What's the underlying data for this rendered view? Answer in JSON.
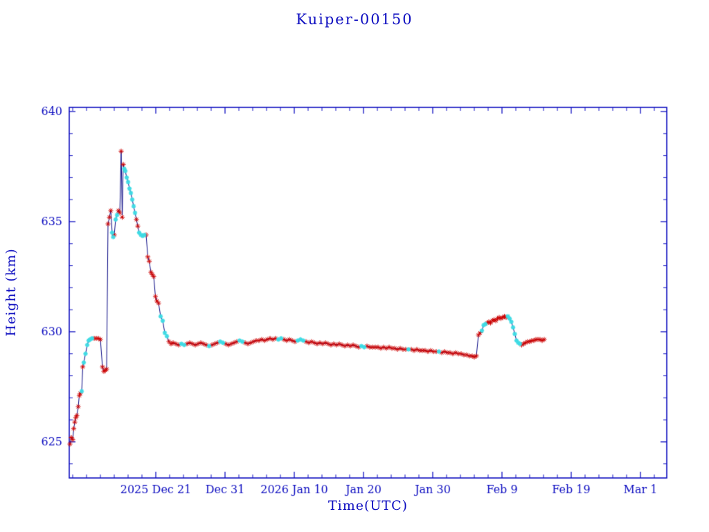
{
  "chart_data": {
    "type": "line",
    "title": "Kuiper-00150",
    "xlabel": "Time(UTC)",
    "ylabel": "Height (km)",
    "axis_color": "#0d0dc0",
    "line_color": "#000080",
    "marker_colors": {
      "r": "#cc0000",
      "c": "#3fdbe4"
    },
    "marker_styles": {
      "r": "red asterisk",
      "c": "cyan star"
    },
    "grid": false,
    "legend": "none",
    "x_unit": "days from left axis edge (major ticks every 10 days; day 12.5 = 2025 Dec 21)",
    "xlim": [
      0,
      86.3
    ],
    "ylim": [
      623.36,
      640.19
    ],
    "x_minor_step": 2,
    "y_minor_step": 1,
    "x_ticks": [
      {
        "pos": 12.5,
        "label": "2025 Dec 21"
      },
      {
        "pos": 22.5,
        "label": "Dec 31"
      },
      {
        "pos": 32.5,
        "label": "2026 Jan 10"
      },
      {
        "pos": 42.5,
        "label": "Jan 20"
      },
      {
        "pos": 52.5,
        "label": "Jan 30"
      },
      {
        "pos": 62.5,
        "label": "Feb 9"
      },
      {
        "pos": 72.5,
        "label": "Feb 19"
      },
      {
        "pos": 82.5,
        "label": "Mar 1"
      }
    ],
    "y_ticks": [
      {
        "pos": 625,
        "label": "625"
      },
      {
        "pos": 630,
        "label": "630"
      },
      {
        "pos": 635,
        "label": "635"
      },
      {
        "pos": 640,
        "label": "640"
      }
    ],
    "points": [
      [
        0.1,
        624.9,
        "r"
      ],
      [
        0.3,
        625.2,
        "r"
      ],
      [
        0.5,
        625.1,
        "r"
      ],
      [
        0.65,
        625.6,
        "r"
      ],
      [
        0.8,
        625.9,
        "r"
      ],
      [
        0.95,
        626.1,
        "r"
      ],
      [
        1.1,
        626.2,
        "r"
      ],
      [
        1.3,
        626.6,
        "r"
      ],
      [
        1.45,
        627.1,
        "r"
      ],
      [
        1.6,
        627.2,
        "r"
      ],
      [
        1.8,
        627.3,
        "c"
      ],
      [
        1.95,
        628.4,
        "r"
      ],
      [
        2.1,
        628.6,
        "c"
      ],
      [
        2.35,
        629.0,
        "c"
      ],
      [
        2.6,
        629.4,
        "c"
      ],
      [
        2.8,
        629.6,
        "c"
      ],
      [
        3.0,
        629.65,
        "c"
      ],
      [
        3.3,
        629.7,
        "c"
      ],
      [
        3.6,
        629.7,
        "r"
      ],
      [
        3.9,
        629.7,
        "r"
      ],
      [
        4.2,
        629.7,
        "r"
      ],
      [
        4.5,
        629.65,
        "r"
      ],
      [
        4.8,
        628.4,
        "r"
      ],
      [
        5.0,
        628.2,
        "r"
      ],
      [
        5.2,
        628.25,
        "r"
      ],
      [
        5.4,
        628.3,
        "r"
      ],
      [
        5.6,
        634.9,
        "r"
      ],
      [
        5.8,
        635.2,
        "r"
      ],
      [
        6.0,
        635.5,
        "r"
      ],
      [
        6.2,
        634.5,
        "c"
      ],
      [
        6.35,
        634.3,
        "c"
      ],
      [
        6.5,
        634.4,
        "r"
      ],
      [
        6.7,
        635.1,
        "c"
      ],
      [
        6.9,
        635.3,
        "c"
      ],
      [
        7.1,
        635.5,
        "r"
      ],
      [
        7.3,
        635.4,
        "r"
      ],
      [
        7.5,
        638.2,
        "r"
      ],
      [
        7.65,
        635.2,
        "r"
      ],
      [
        7.8,
        637.6,
        "r"
      ],
      [
        7.95,
        637.4,
        "c"
      ],
      [
        8.1,
        637.3,
        "c"
      ],
      [
        8.3,
        637.0,
        "c"
      ],
      [
        8.5,
        636.8,
        "c"
      ],
      [
        8.7,
        636.5,
        "c"
      ],
      [
        8.9,
        636.3,
        "c"
      ],
      [
        9.1,
        636.0,
        "c"
      ],
      [
        9.3,
        635.7,
        "c"
      ],
      [
        9.5,
        635.4,
        "c"
      ],
      [
        9.7,
        635.1,
        "r"
      ],
      [
        9.9,
        634.8,
        "r"
      ],
      [
        10.1,
        634.5,
        "c"
      ],
      [
        10.35,
        634.4,
        "c"
      ],
      [
        10.6,
        634.35,
        "c"
      ],
      [
        10.85,
        634.4,
        "c"
      ],
      [
        11.1,
        634.4,
        "r"
      ],
      [
        11.35,
        633.4,
        "r"
      ],
      [
        11.55,
        633.2,
        "r"
      ],
      [
        11.8,
        632.7,
        "r"
      ],
      [
        12.0,
        632.6,
        "r"
      ],
      [
        12.2,
        632.5,
        "r"
      ],
      [
        12.45,
        631.6,
        "r"
      ],
      [
        12.65,
        631.4,
        "r"
      ],
      [
        12.9,
        631.3,
        "r"
      ],
      [
        13.2,
        630.7,
        "c"
      ],
      [
        13.5,
        630.5,
        "c"
      ],
      [
        13.8,
        629.95,
        "c"
      ],
      [
        14.1,
        629.8,
        "c"
      ],
      [
        14.4,
        629.55,
        "r"
      ],
      [
        14.7,
        629.45,
        "r"
      ],
      [
        15.0,
        629.5,
        "r"
      ],
      [
        15.4,
        629.45,
        "r"
      ],
      [
        15.8,
        629.4,
        "r"
      ],
      [
        16.2,
        629.45,
        "c"
      ],
      [
        16.6,
        629.4,
        "c"
      ],
      [
        17.0,
        629.45,
        "r"
      ],
      [
        17.4,
        629.5,
        "r"
      ],
      [
        17.8,
        629.45,
        "r"
      ],
      [
        18.2,
        629.4,
        "r"
      ],
      [
        18.6,
        629.45,
        "r"
      ],
      [
        19.0,
        629.5,
        "r"
      ],
      [
        19.4,
        629.45,
        "r"
      ],
      [
        19.8,
        629.4,
        "r"
      ],
      [
        20.2,
        629.35,
        "c"
      ],
      [
        20.6,
        629.4,
        "r"
      ],
      [
        21.0,
        629.45,
        "r"
      ],
      [
        21.4,
        629.5,
        "r"
      ],
      [
        21.8,
        629.55,
        "c"
      ],
      [
        22.2,
        629.5,
        "c"
      ],
      [
        22.6,
        629.45,
        "r"
      ],
      [
        23.0,
        629.4,
        "r"
      ],
      [
        23.4,
        629.45,
        "r"
      ],
      [
        23.8,
        629.5,
        "r"
      ],
      [
        24.2,
        629.55,
        "r"
      ],
      [
        24.6,
        629.6,
        "c"
      ],
      [
        25.0,
        629.55,
        "c"
      ],
      [
        25.4,
        629.5,
        "r"
      ],
      [
        25.8,
        629.45,
        "r"
      ],
      [
        26.2,
        629.5,
        "r"
      ],
      [
        26.6,
        629.55,
        "r"
      ],
      [
        27.0,
        629.6,
        "r"
      ],
      [
        27.4,
        629.6,
        "r"
      ],
      [
        27.8,
        629.65,
        "r"
      ],
      [
        28.2,
        629.6,
        "r"
      ],
      [
        28.6,
        629.65,
        "r"
      ],
      [
        29.0,
        629.7,
        "r"
      ],
      [
        29.4,
        629.65,
        "r"
      ],
      [
        29.8,
        629.7,
        "r"
      ],
      [
        30.2,
        629.65,
        "c"
      ],
      [
        30.6,
        629.7,
        "c"
      ],
      [
        31.0,
        629.65,
        "r"
      ],
      [
        31.4,
        629.6,
        "r"
      ],
      [
        31.8,
        629.65,
        "r"
      ],
      [
        32.2,
        629.6,
        "r"
      ],
      [
        32.6,
        629.55,
        "r"
      ],
      [
        33.0,
        629.6,
        "c"
      ],
      [
        33.4,
        629.65,
        "c"
      ],
      [
        33.8,
        629.6,
        "c"
      ],
      [
        34.2,
        629.55,
        "r"
      ],
      [
        34.6,
        629.5,
        "r"
      ],
      [
        35.0,
        629.55,
        "r"
      ],
      [
        35.4,
        629.5,
        "r"
      ],
      [
        35.8,
        629.45,
        "r"
      ],
      [
        36.2,
        629.5,
        "r"
      ],
      [
        36.6,
        629.45,
        "r"
      ],
      [
        37.0,
        629.5,
        "r"
      ],
      [
        37.4,
        629.45,
        "r"
      ],
      [
        37.8,
        629.4,
        "r"
      ],
      [
        38.2,
        629.45,
        "r"
      ],
      [
        38.6,
        629.4,
        "r"
      ],
      [
        39.0,
        629.45,
        "r"
      ],
      [
        39.4,
        629.4,
        "r"
      ],
      [
        39.8,
        629.35,
        "r"
      ],
      [
        40.2,
        629.4,
        "r"
      ],
      [
        40.6,
        629.35,
        "r"
      ],
      [
        41.0,
        629.4,
        "r"
      ],
      [
        41.4,
        629.35,
        "r"
      ],
      [
        41.8,
        629.3,
        "r"
      ],
      [
        42.2,
        629.35,
        "c"
      ],
      [
        42.6,
        629.3,
        "c"
      ],
      [
        43.0,
        629.35,
        "r"
      ],
      [
        43.4,
        629.3,
        "r"
      ],
      [
        43.8,
        629.3,
        "r"
      ],
      [
        44.2,
        629.3,
        "r"
      ],
      [
        44.6,
        629.3,
        "r"
      ],
      [
        45.0,
        629.25,
        "r"
      ],
      [
        45.4,
        629.3,
        "r"
      ],
      [
        45.8,
        629.25,
        "r"
      ],
      [
        46.2,
        629.3,
        "r"
      ],
      [
        46.6,
        629.25,
        "r"
      ],
      [
        47.0,
        629.25,
        "r"
      ],
      [
        47.4,
        629.2,
        "r"
      ],
      [
        47.8,
        629.25,
        "r"
      ],
      [
        48.2,
        629.2,
        "r"
      ],
      [
        48.6,
        629.2,
        "r"
      ],
      [
        49.0,
        629.2,
        "c"
      ],
      [
        49.4,
        629.2,
        "r"
      ],
      [
        49.8,
        629.15,
        "r"
      ],
      [
        50.2,
        629.2,
        "r"
      ],
      [
        50.6,
        629.15,
        "r"
      ],
      [
        51.0,
        629.15,
        "r"
      ],
      [
        51.4,
        629.15,
        "r"
      ],
      [
        51.8,
        629.1,
        "r"
      ],
      [
        52.2,
        629.15,
        "r"
      ],
      [
        52.6,
        629.1,
        "r"
      ],
      [
        53.0,
        629.1,
        "r"
      ],
      [
        53.4,
        629.1,
        "c"
      ],
      [
        53.8,
        629.05,
        "r"
      ],
      [
        54.2,
        629.1,
        "r"
      ],
      [
        54.6,
        629.05,
        "r"
      ],
      [
        55.0,
        629.05,
        "r"
      ],
      [
        55.4,
        629.0,
        "r"
      ],
      [
        55.8,
        629.05,
        "r"
      ],
      [
        56.2,
        629.0,
        "r"
      ],
      [
        56.6,
        629.0,
        "r"
      ],
      [
        57.0,
        628.95,
        "r"
      ],
      [
        57.4,
        628.95,
        "r"
      ],
      [
        57.8,
        628.9,
        "r"
      ],
      [
        58.2,
        628.9,
        "r"
      ],
      [
        58.5,
        628.85,
        "r"
      ],
      [
        58.8,
        628.9,
        "r"
      ],
      [
        59.1,
        629.85,
        "r"
      ],
      [
        59.35,
        629.95,
        "r"
      ],
      [
        59.6,
        630.05,
        "c"
      ],
      [
        59.85,
        630.3,
        "c"
      ],
      [
        60.1,
        630.35,
        "c"
      ],
      [
        60.35,
        630.4,
        "r"
      ],
      [
        60.6,
        630.45,
        "r"
      ],
      [
        60.85,
        630.4,
        "r"
      ],
      [
        61.1,
        630.5,
        "r"
      ],
      [
        61.35,
        630.55,
        "r"
      ],
      [
        61.6,
        630.5,
        "r"
      ],
      [
        61.85,
        630.6,
        "r"
      ],
      [
        62.1,
        630.65,
        "r"
      ],
      [
        62.35,
        630.6,
        "r"
      ],
      [
        62.6,
        630.65,
        "r"
      ],
      [
        62.85,
        630.7,
        "r"
      ],
      [
        63.1,
        630.65,
        "r"
      ],
      [
        63.35,
        630.7,
        "c"
      ],
      [
        63.6,
        630.6,
        "c"
      ],
      [
        63.85,
        630.45,
        "c"
      ],
      [
        64.1,
        630.2,
        "c"
      ],
      [
        64.35,
        629.9,
        "c"
      ],
      [
        64.6,
        629.6,
        "c"
      ],
      [
        64.85,
        629.5,
        "c"
      ],
      [
        65.1,
        629.45,
        "c"
      ],
      [
        65.35,
        629.4,
        "r"
      ],
      [
        65.6,
        629.45,
        "r"
      ],
      [
        65.9,
        629.5,
        "r"
      ],
      [
        66.2,
        629.55,
        "r"
      ],
      [
        66.5,
        629.55,
        "r"
      ],
      [
        66.8,
        629.6,
        "r"
      ],
      [
        67.1,
        629.6,
        "r"
      ],
      [
        67.4,
        629.65,
        "r"
      ],
      [
        67.7,
        629.65,
        "r"
      ],
      [
        68.0,
        629.65,
        "r"
      ],
      [
        68.3,
        629.6,
        "r"
      ],
      [
        68.6,
        629.65,
        "r"
      ]
    ]
  }
}
